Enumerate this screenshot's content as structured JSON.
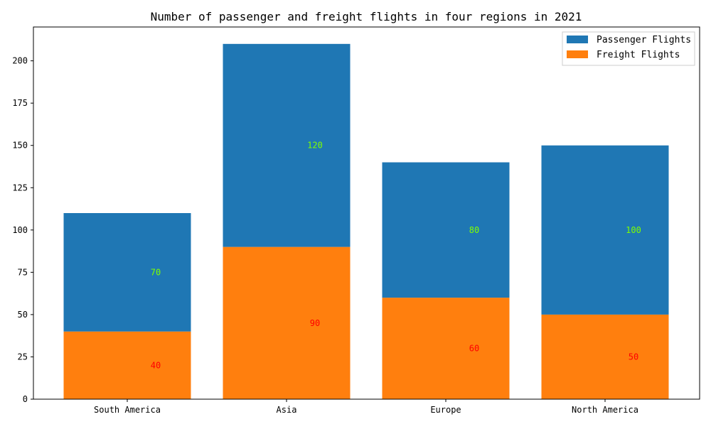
{
  "chart_data": {
    "type": "bar",
    "stacked": true,
    "title": "Number of passenger and freight flights in four regions in 2021",
    "xlabel": "",
    "ylabel": "",
    "categories": [
      "South America",
      "Asia",
      "Europe",
      "North America"
    ],
    "ylim": [
      0,
      220
    ],
    "yticks": [
      0,
      25,
      50,
      75,
      100,
      125,
      150,
      175,
      200
    ],
    "grid": false,
    "legend_position": "top-right",
    "series": [
      {
        "name": "Freight Flights",
        "values": [
          40,
          90,
          60,
          50
        ],
        "color": "#ff7f0e",
        "label_color": "#ff0000"
      },
      {
        "name": "Passenger Flights",
        "values": [
          70,
          120,
          80,
          100
        ],
        "color": "#1f77b4",
        "label_color": "#7fff00"
      }
    ],
    "legend_order": [
      "Passenger Flights",
      "Freight Flights"
    ]
  }
}
